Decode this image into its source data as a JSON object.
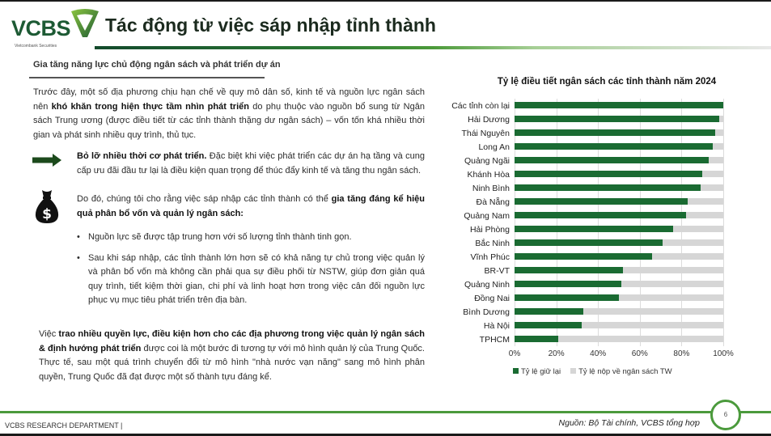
{
  "header": {
    "logo_text": "VCBS",
    "logo_subtitle": "Vietcombank Securities",
    "title": "Tác động từ việc sáp nhập tỉnh thành",
    "brand_color": "#1d5a34"
  },
  "section": {
    "heading": "Gia tăng năng lực chủ động ngân sách và phát triển dự án"
  },
  "body": {
    "p1_pre": "Trước đây, một số địa phương chịu hạn chế về quy mô dân số, kinh tế và nguồn lực ngân sách nên ",
    "p1_bold": "khó khăn trong hiện thực tầm nhìn phát triển",
    "p1_post": " do phụ thuộc vào nguồn bổ sung từ Ngân sách Trung ương (được điều tiết từ các tỉnh thành thặng dư ngân sách) – vốn tốn khá nhiều thời gian và phát sinh nhiều quy trình, thủ tục.",
    "p2_bold": "Bỏ lỡ nhiều thời cơ phát triển.",
    "p2_post": " Đặc biệt khi việc phát triển các dự án hạ tầng và cung cấp ưu đãi đầu tư lại là điều kiện quan trọng để thúc đẩy kinh tế và tăng thu ngân sách.",
    "p3_pre": "Do đó, chúng tôi cho rằng việc sáp nhập các tỉnh thành có thể ",
    "p3_bold": "gia tăng đáng kể hiệu quả phân bổ vốn và quản lý ngân sách:",
    "bullets": [
      "Nguồn lực sẽ được tập trung hơn với số lượng tỉnh thành tinh gọn.",
      "Sau khi sáp nhập, các tỉnh thành lớn hơn sẽ có khả năng tự chủ trong việc quản lý và phân bổ vốn mà không cần phải qua sự điều phối từ NSTW, giúp đơn giản quá quy trình, tiết kiệm thời gian, chi phí và linh hoạt hơn trong việc cân đối nguồn lực phục vụ mục tiêu phát triển trên địa bàn."
    ],
    "p4_pre": "Việc ",
    "p4_bold": "trao nhiều quyền lực, điều kiện hơn cho các địa phương trong việc quản lý ngân sách & định hướng phát triển",
    "p4_post": " được coi là một bước đi tương tự với mô hình quản lý của Trung Quốc. Thực tế, sau một quá trình chuyển đổi từ mô hình \"nhà nước vạn năng\" sang mô hình phân quyền, Trung Quốc đã đạt được một số thành tựu đáng kể."
  },
  "icons": {
    "arrow": "right-arrow-icon",
    "money": "money-bag-dollar-icon"
  },
  "chart_data": {
    "type": "bar",
    "orientation": "horizontal",
    "stacked": "100%",
    "title": "Tỷ lệ điều tiết ngân sách các tỉnh thành năm 2024",
    "xlabel": "",
    "ylabel": "",
    "xlim": [
      0,
      100
    ],
    "x_ticks": [
      "0%",
      "20%",
      "40%",
      "60%",
      "80%",
      "100%"
    ],
    "grid": true,
    "legend_position": "bottom",
    "categories": [
      "Các tỉnh còn lại",
      "Hải Dương",
      "Thái Nguyên",
      "Long An",
      "Quảng Ngãi",
      "Khánh Hòa",
      "Ninh Bình",
      "Đà Nẵng",
      "Quảng Nam",
      "Hải Phòng",
      "Bắc Ninh",
      "Vĩnh Phúc",
      "BR-VT",
      "Quảng Ninh",
      "Đồng Nai",
      "Bình Dương",
      "Hà Nội",
      "TPHCM"
    ],
    "series": [
      {
        "name": "Tỷ lệ giữ lại",
        "color": "#1a6b32",
        "values": [
          100,
          98,
          96,
          95,
          93,
          90,
          89,
          83,
          82,
          76,
          71,
          66,
          52,
          51,
          50,
          33,
          32,
          21
        ]
      },
      {
        "name": "Tỷ lệ nộp về ngân sách TW",
        "color": "#d6d6d6",
        "values": [
          0,
          2,
          4,
          5,
          7,
          10,
          11,
          17,
          18,
          24,
          29,
          34,
          48,
          49,
          50,
          67,
          68,
          79
        ]
      }
    ]
  },
  "footer": {
    "department": "VCBS RESEARCH DEPARTMENT |",
    "source": "Nguồn: Bộ Tài chính, VCBS tổng hợp",
    "page_number": "6"
  }
}
